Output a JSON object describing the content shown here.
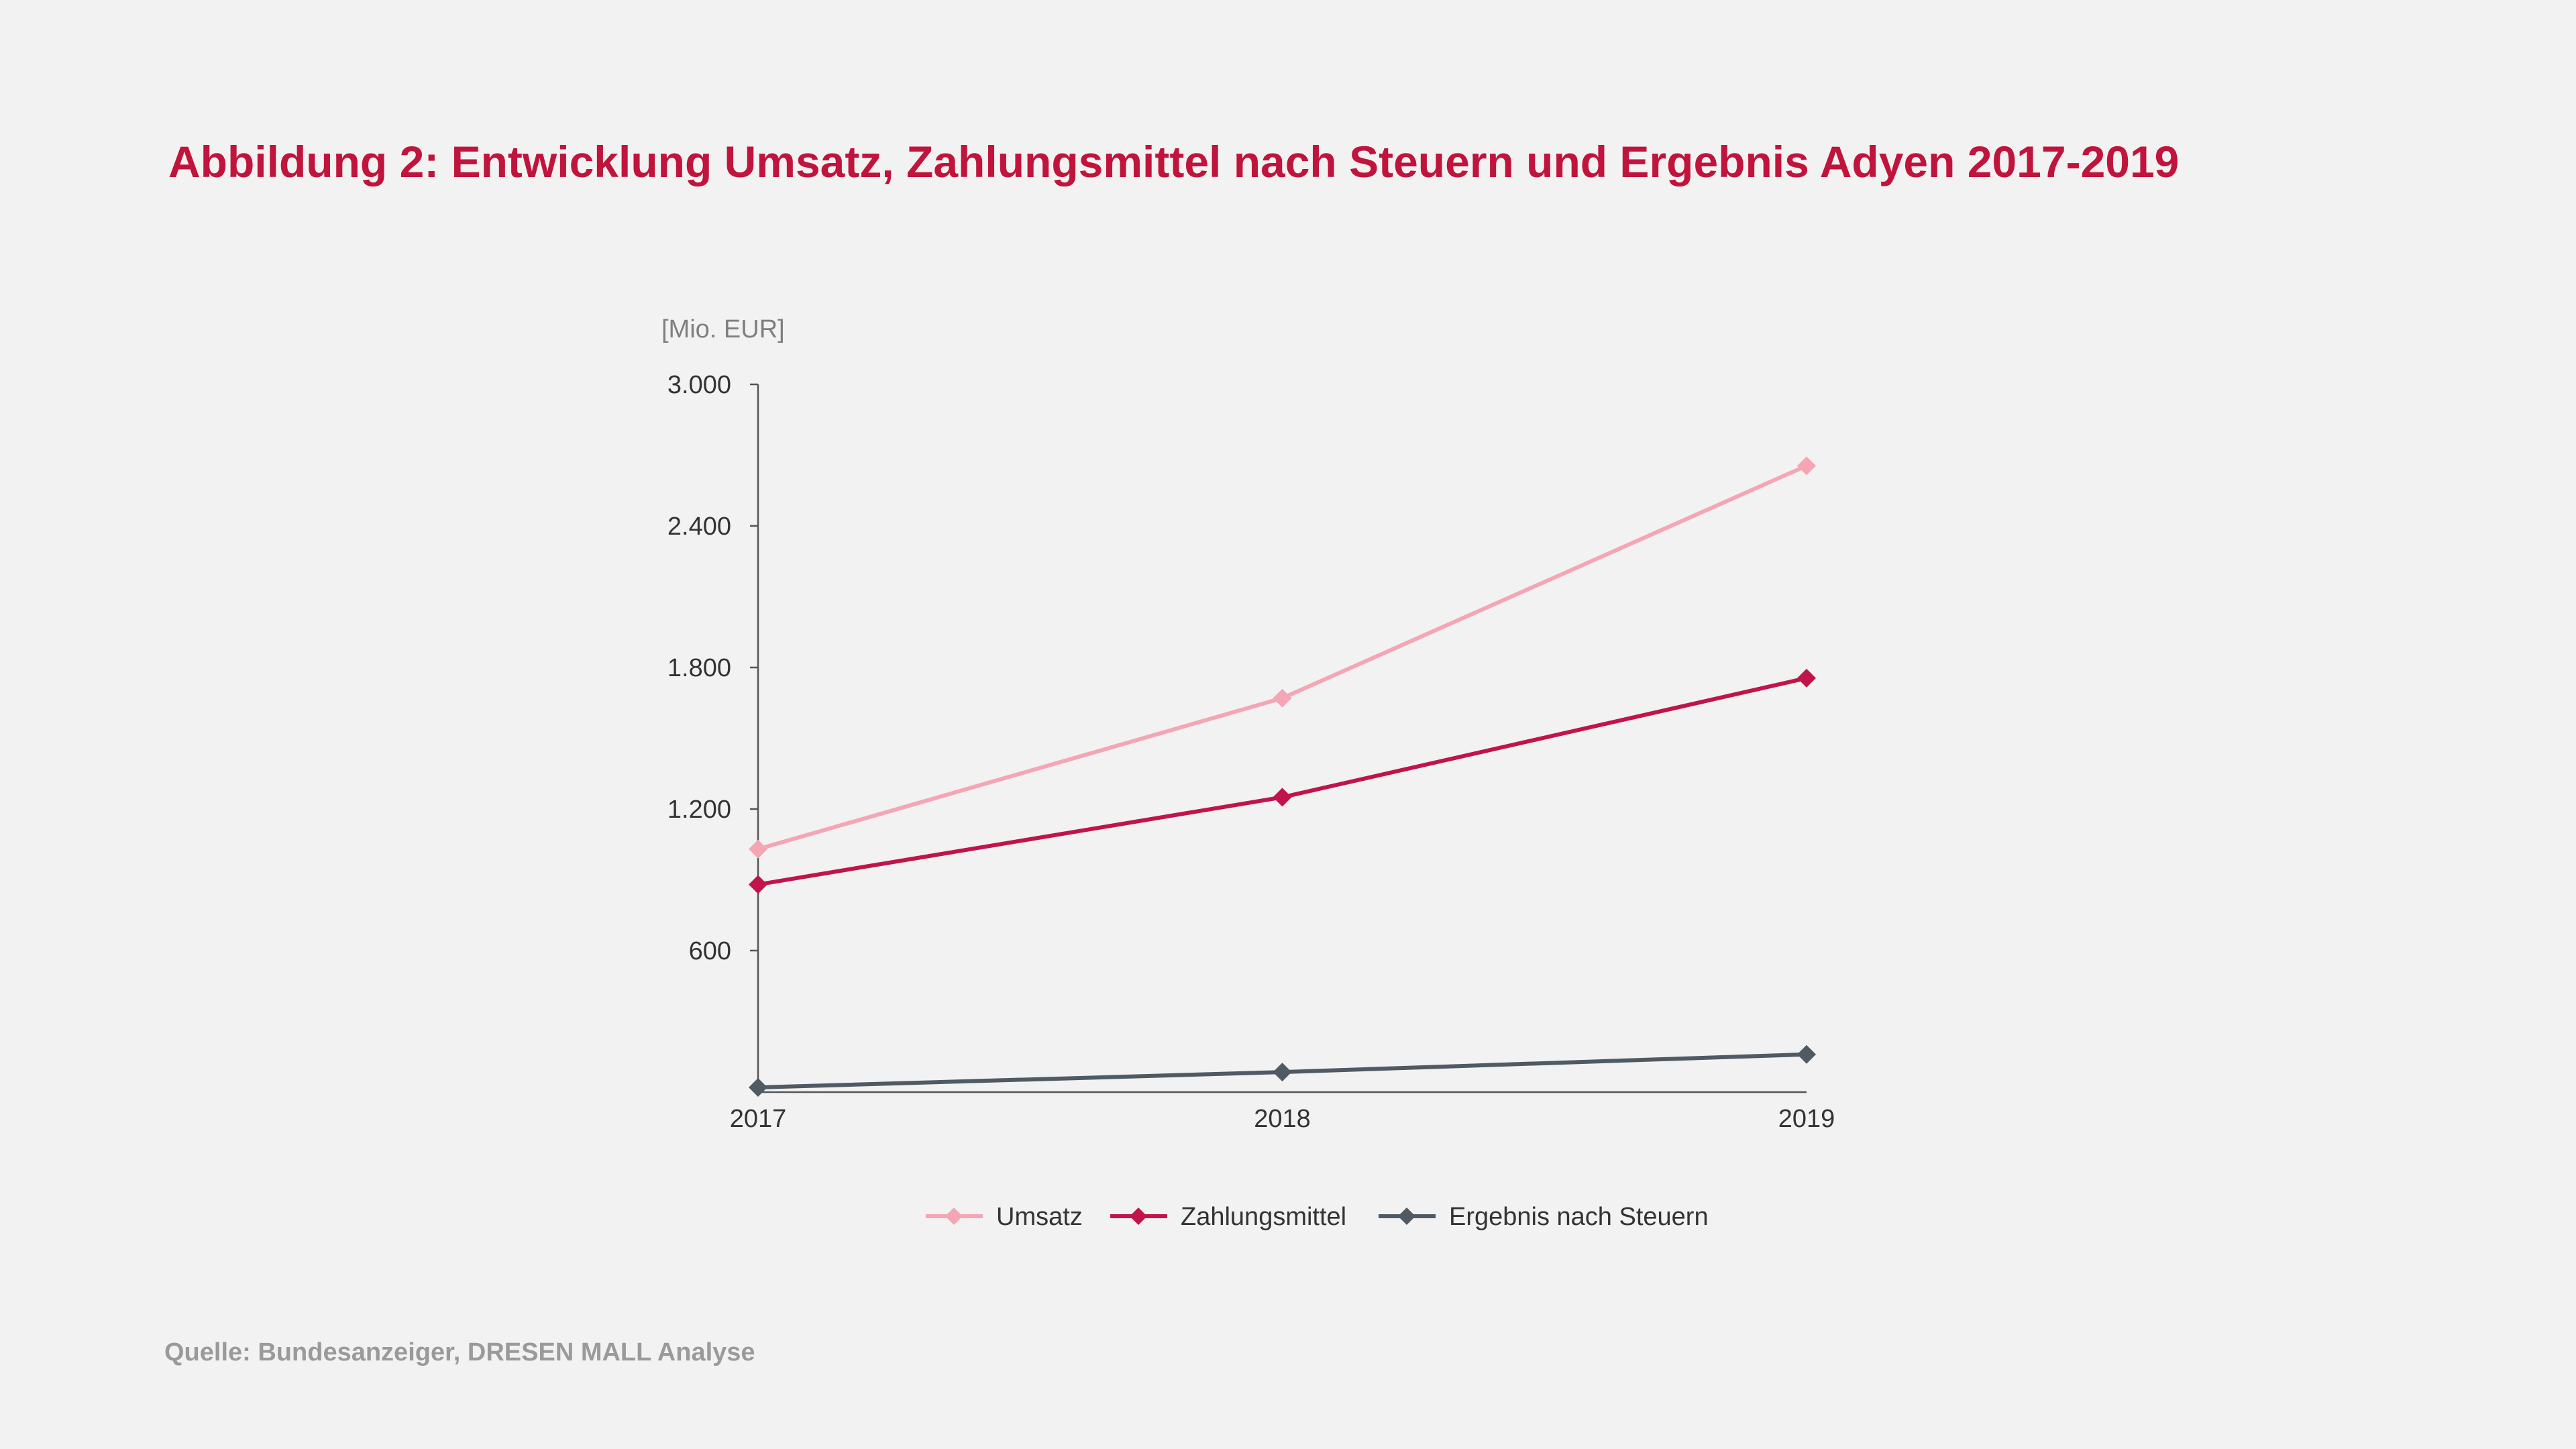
{
  "title": "Abbildung 2: Entwicklung Umsatz, Zahlungsmittel nach Steuern und Ergebnis Adyen 2017-2019",
  "source": "Quelle: Bundesanzeiger, DRESEN MALL Analyse",
  "chart_data": {
    "type": "line",
    "unit_label": "[Mio. EUR]",
    "x": [
      "2017",
      "2018",
      "2019"
    ],
    "ylim": [
      0,
      3000
    ],
    "yticks": [
      600,
      1200,
      1800,
      2400,
      3000
    ],
    "ytick_labels": [
      "600",
      "1.200",
      "1.800",
      "2.400",
      "3.000"
    ],
    "grid": false,
    "legend_position": "bottom",
    "series": [
      {
        "name": "Umsatz",
        "values": [
          1030,
          1670,
          2655
        ],
        "color": "#f4a6b4",
        "marker": "diamond"
      },
      {
        "name": "Zahlungsmittel",
        "values": [
          880,
          1250,
          1755
        ],
        "color": "#c0144a",
        "marker": "diamond"
      },
      {
        "name": "Ergebnis nach  Steuern",
        "values": [
          20,
          85,
          160
        ],
        "color": "#505a63",
        "marker": "diamond"
      }
    ]
  },
  "colors": {
    "title": "#c0143c",
    "axis": "#555555",
    "tick_label": "#333333",
    "unit_label": "#7f7f7f",
    "source": "#9a9a9a",
    "background": "#f2f2f2"
  }
}
